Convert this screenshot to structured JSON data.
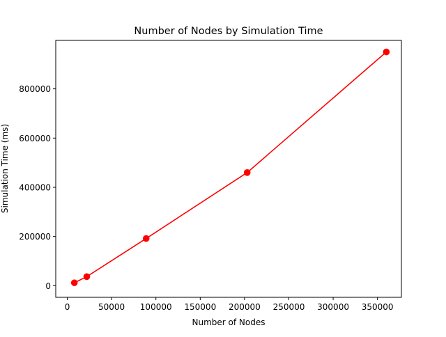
{
  "chart_data": {
    "type": "line",
    "title": "Number of Nodes by Simulation Time",
    "xlabel": "Number of Nodes",
    "ylabel": "Simulation Time (ms)",
    "xlim": [
      -13000,
      377000
    ],
    "ylim": [
      -47000,
      997000
    ],
    "x_ticks": [
      0,
      50000,
      100000,
      150000,
      200000,
      250000,
      300000,
      350000
    ],
    "x_tick_labels": [
      "0",
      "50000",
      "100000",
      "150000",
      "200000",
      "250000",
      "300000",
      "350000"
    ],
    "y_ticks": [
      0,
      200000,
      400000,
      600000,
      800000
    ],
    "y_tick_labels": [
      "0",
      "200000",
      "400000",
      "600000",
      "800000"
    ],
    "grid": false,
    "series": [
      {
        "color": "#ff0000",
        "marker": "circle",
        "x": [
          8000,
          22000,
          89000,
          203000,
          360000
        ],
        "y": [
          12000,
          37000,
          192000,
          460000,
          950000
        ]
      }
    ]
  }
}
